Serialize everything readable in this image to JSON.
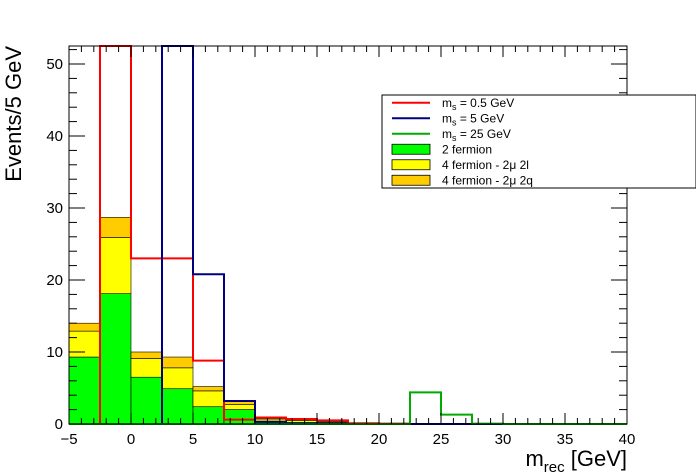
{
  "chart_data": {
    "type": "bar",
    "subtype": "stacked-histogram-with-step-overlays",
    "title": "",
    "xlabel_main": "m",
    "xlabel_sub": "rec",
    "xlabel_unit": " [GeV]",
    "ylabel": "Events/5 GeV",
    "xlim": [
      -5,
      40
    ],
    "ylim": [
      0,
      52.5
    ],
    "bin_width": 2.5,
    "bin_edges": [
      -5,
      -2.5,
      0,
      2.5,
      5,
      7.5,
      10,
      12.5,
      15,
      17.5,
      20,
      22.5,
      25,
      27.5,
      30,
      32.5,
      35,
      37.5,
      40
    ],
    "x_ticks": [
      -5,
      0,
      5,
      10,
      15,
      20,
      25,
      30,
      35,
      40
    ],
    "x_tick_labels": [
      "−5",
      "0",
      "5",
      "10",
      "15",
      "20",
      "25",
      "30",
      "35",
      "40"
    ],
    "y_ticks": [
      0,
      10,
      20,
      30,
      40,
      50
    ],
    "y_tick_labels": [
      "0",
      "10",
      "20",
      "30",
      "40",
      "50"
    ],
    "stacked": [
      {
        "name": "2 fermion",
        "color": "#00ff00",
        "values": [
          9.3,
          18.1,
          6.5,
          4.9,
          2.4,
          2.0,
          0.4,
          0.2,
          0.1,
          0.05,
          0,
          0,
          0,
          0,
          0,
          0,
          0,
          0
        ]
      },
      {
        "name": "4 fermion - 2μ 2l",
        "color": "#ffff00",
        "values": [
          3.6,
          7.8,
          2.6,
          2.9,
          2.2,
          0.7,
          0.3,
          0.3,
          0.1,
          0.05,
          0.1,
          0,
          0,
          0,
          0,
          0,
          0,
          0
        ]
      },
      {
        "name": "4 fermion - 2μ 2q",
        "color": "#ffcc00",
        "values": [
          1.1,
          2.8,
          0.9,
          1.5,
          0.6,
          0.4,
          0.2,
          0.1,
          0.1,
          0.05,
          0,
          0,
          0,
          0,
          0,
          0,
          0,
          0
        ]
      }
    ],
    "overlays": [
      {
        "name": "m",
        "sub": "s",
        "suffix": " = 0.5 GeV",
        "color": "#ff0000",
        "values": [
          0,
          0,
          23.0,
          23.0,
          8.8,
          0.6,
          0.9,
          0.7,
          0.5,
          0.1,
          0.05,
          0,
          0,
          0,
          0,
          0,
          0,
          0
        ],
        "clipped_bins": [
          1
        ]
      },
      {
        "name": "m",
        "sub": "s",
        "suffix": " = 5 GeV",
        "color": "#000080",
        "values": [
          0,
          0,
          0,
          0,
          20.8,
          3.2,
          0.3,
          0.1,
          0.05,
          0,
          0,
          0,
          0,
          0,
          0,
          0,
          0,
          0
        ],
        "clipped_bins": [
          3
        ]
      },
      {
        "name": "m",
        "sub": "s",
        "suffix": " = 25 GeV",
        "color": "#00aa00",
        "values": [
          0,
          0,
          0,
          0,
          0,
          0,
          0,
          0,
          0,
          0,
          0,
          4.4,
          1.3,
          0.05,
          0,
          0,
          0,
          0
        ],
        "clipped_bins": []
      }
    ],
    "legend": {
      "placement": "top-right",
      "entries": [
        {
          "kind": "line",
          "color": "#ff0000",
          "label_main": "m",
          "label_sub": "s",
          "label_suffix": " = 0.5 GeV"
        },
        {
          "kind": "line",
          "color": "#000080",
          "label_main": "m",
          "label_sub": "s",
          "label_suffix": " = 5 GeV"
        },
        {
          "kind": "line",
          "color": "#00aa00",
          "label_main": "m",
          "label_sub": "s",
          "label_suffix": " = 25 GeV"
        },
        {
          "kind": "box",
          "color": "#00ff00",
          "label_main": "2 fermion",
          "label_sub": "",
          "label_suffix": ""
        },
        {
          "kind": "box",
          "color": "#ffff00",
          "label_main": "4 fermion - 2μ 2l",
          "label_sub": "",
          "label_suffix": ""
        },
        {
          "kind": "box",
          "color": "#ffcc00",
          "label_main": "4 fermion - 2μ 2q",
          "label_sub": "",
          "label_suffix": ""
        }
      ]
    },
    "grid": false
  }
}
